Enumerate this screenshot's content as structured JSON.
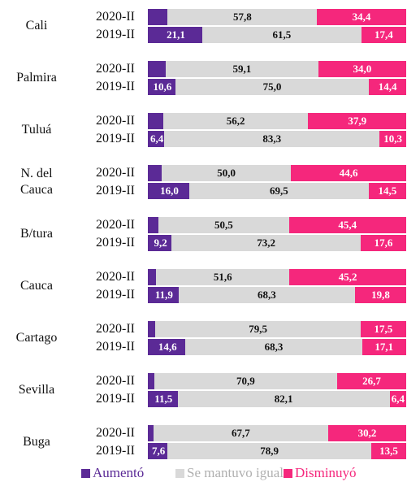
{
  "chart_data": {
    "type": "bar",
    "stacked": true,
    "orientation": "horizontal",
    "groups": [
      "Cali",
      "Palmira",
      "Tuluá",
      "N. del Cauca",
      "B/tura",
      "Cauca",
      "Cartago",
      "Sevilla",
      "Buga"
    ],
    "categories": [
      "2020-II",
      "2019-II",
      "2020-II",
      "2019-II",
      "2020-II",
      "2019-II",
      "2020-II",
      "2019-II",
      "2020-II",
      "2019-II",
      "2020-II",
      "2019-II",
      "2020-II",
      "2019-II",
      "2020-II",
      "2019-II",
      "2020-II",
      "2019-II"
    ],
    "series": [
      {
        "name": "Aumentó",
        "color": "#5b2a96",
        "values": [
          7.7,
          21.1,
          6.9,
          10.6,
          5.9,
          6.4,
          5.4,
          16.0,
          4.1,
          9.2,
          3.2,
          11.9,
          2.9,
          14.6,
          2.4,
          11.5,
          2.1,
          7.6
        ],
        "value_labels": [
          "7,7",
          "21,1",
          "6,9",
          "10,6",
          "5,9",
          "6,4",
          "5,4",
          "16,0",
          "4,1",
          "9,2",
          "3,2",
          "11,9",
          "2,9",
          "14,6",
          "2,4",
          "11,5",
          "2,1",
          "7,6"
        ]
      },
      {
        "name": "Se mantuvo igual",
        "color": "#d9d9d9",
        "values": [
          57.8,
          61.5,
          59.1,
          75.0,
          56.2,
          83.3,
          50.0,
          69.5,
          50.5,
          73.2,
          51.6,
          68.3,
          79.5,
          68.3,
          70.9,
          82.1,
          67.7,
          78.9
        ],
        "value_labels": [
          "57,8",
          "61,5",
          "59,1",
          "75,0",
          "56,2",
          "83,3",
          "50,0",
          "69,5",
          "50,5",
          "73,2",
          "51,6",
          "68,3",
          "79,5",
          "68,3",
          "70,9",
          "82,1",
          "67,7",
          "78,9"
        ]
      },
      {
        "name": "Disminuyó",
        "color": "#f5277c",
        "values": [
          34.4,
          17.4,
          34.0,
          14.4,
          37.9,
          10.3,
          44.6,
          14.5,
          45.4,
          17.6,
          45.2,
          19.8,
          17.5,
          17.1,
          26.7,
          6.4,
          30.2,
          13.5
        ],
        "value_labels": [
          "34,4",
          "17,4",
          "34,0",
          "14,4",
          "37,9",
          "10,3",
          "44,6",
          "14,5",
          "45,4",
          "17,6",
          "45,2",
          "19,8",
          "17,5",
          "17,1",
          "26,7",
          "6,4",
          "30,2",
          "13,5"
        ]
      }
    ]
  }
}
